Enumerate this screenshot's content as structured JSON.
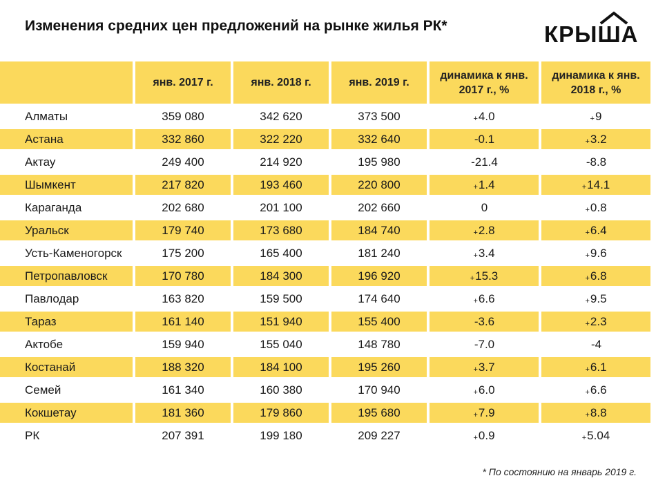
{
  "title": "Изменения средних цен предложений на рынке жилья РК*",
  "logo": {
    "text": "КРЫША",
    "icon": "house-roof-icon"
  },
  "footnote": "* По состоянию на январь 2019 г.",
  "colors": {
    "row_highlight": "#fbd95c",
    "background": "#ffffff"
  },
  "chart_data": {
    "type": "table",
    "title": "Изменения средних цен предложений на рынке жилья РК*",
    "columns": [
      "",
      "янв. 2017 г.",
      "янв. 2018 г.",
      "янв. 2019 г.",
      "динамика к янв. 2017 г., %",
      "динамика к янв. 2018 г., %"
    ],
    "rows": [
      {
        "city": "Алматы",
        "v2017": "359 080",
        "v2018": "342 620",
        "v2019": "373 500",
        "d2017_sign": "+",
        "d2017": "4.0",
        "d2018_sign": "+",
        "d2018": "9"
      },
      {
        "city": "Астана",
        "v2017": "332 860",
        "v2018": "322 220",
        "v2019": "332 640",
        "d2017_sign": "",
        "d2017": "-0.1",
        "d2018_sign": "+",
        "d2018": "3.2"
      },
      {
        "city": "Актау",
        "v2017": "249 400",
        "v2018": "214 920",
        "v2019": "195 980",
        "d2017_sign": "",
        "d2017": "-21.4",
        "d2018_sign": "",
        "d2018": "-8.8"
      },
      {
        "city": "Шымкент",
        "v2017": "217 820",
        "v2018": "193 460",
        "v2019": "220 800",
        "d2017_sign": "+",
        "d2017": "1.4",
        "d2018_sign": "+",
        "d2018": "14.1"
      },
      {
        "city": "Караганда",
        "v2017": "202 680",
        "v2018": "201 100",
        "v2019": "202 660",
        "d2017_sign": "",
        "d2017": "0",
        "d2018_sign": "+",
        "d2018": "0.8"
      },
      {
        "city": "Уральск",
        "v2017": "179 740",
        "v2018": "173 680",
        "v2019": "184 740",
        "d2017_sign": "+",
        "d2017": "2.8",
        "d2018_sign": "+",
        "d2018": "6.4"
      },
      {
        "city": "Усть-Каменогорск",
        "v2017": "175 200",
        "v2018": "165 400",
        "v2019": "181 240",
        "d2017_sign": "+",
        "d2017": "3.4",
        "d2018_sign": "+",
        "d2018": "9.6"
      },
      {
        "city": "Петропавловск",
        "v2017": "170 780",
        "v2018": "184 300",
        "v2019": "196 920",
        "d2017_sign": "+",
        "d2017": "15.3",
        "d2018_sign": "+",
        "d2018": "6.8"
      },
      {
        "city": "Павлодар",
        "v2017": "163 820",
        "v2018": "159 500",
        "v2019": "174 640",
        "d2017_sign": "+",
        "d2017": "6.6",
        "d2018_sign": "+",
        "d2018": "9.5"
      },
      {
        "city": "Тараз",
        "v2017": "161 140",
        "v2018": "151 940",
        "v2019": "155 400",
        "d2017_sign": "",
        "d2017": "-3.6",
        "d2018_sign": "+",
        "d2018": "2.3"
      },
      {
        "city": "Актобе",
        "v2017": "159 940",
        "v2018": "155 040",
        "v2019": "148 780",
        "d2017_sign": "",
        "d2017": "-7.0",
        "d2018_sign": "",
        "d2018": "-4"
      },
      {
        "city": "Костанай",
        "v2017": "188 320",
        "v2018": "184 100",
        "v2019": "195 260",
        "d2017_sign": "+",
        "d2017": "3.7",
        "d2018_sign": "+",
        "d2018": "6.1"
      },
      {
        "city": "Семей",
        "v2017": "161 340",
        "v2018": "160 380",
        "v2019": "170 940",
        "d2017_sign": "+",
        "d2017": "6.0",
        "d2018_sign": "+",
        "d2018": "6.6"
      },
      {
        "city": "Кокшетау",
        "v2017": "181 360",
        "v2018": "179 860",
        "v2019": "195 680",
        "d2017_sign": "+",
        "d2017": "7.9",
        "d2018_sign": "+",
        "d2018": "8.8"
      },
      {
        "city": "РК",
        "v2017": "207 391",
        "v2018": "199 180",
        "v2019": "209 227",
        "d2017_sign": "+",
        "d2017": "0.9",
        "d2018_sign": "+",
        "d2018": "5.04"
      }
    ]
  }
}
